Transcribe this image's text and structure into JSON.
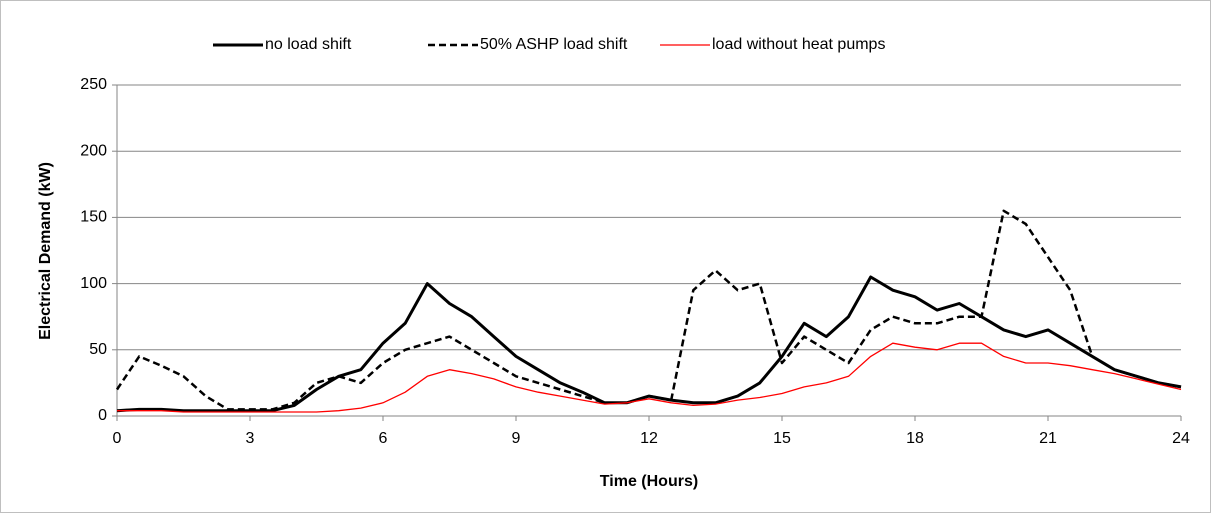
{
  "chart_data": {
    "type": "line",
    "xlabel": "Time (Hours)",
    "ylabel": "Electrical Demand (kW)",
    "x": [
      0,
      0.5,
      1,
      1.5,
      2,
      2.5,
      3,
      3.5,
      4,
      4.5,
      5,
      5.5,
      6,
      6.5,
      7,
      7.5,
      8,
      8.5,
      9,
      9.5,
      10,
      10.5,
      11,
      11.5,
      12,
      12.5,
      13,
      13.5,
      14,
      14.5,
      15,
      15.5,
      16,
      16.5,
      17,
      17.5,
      18,
      18.5,
      19,
      19.5,
      20,
      20.5,
      21,
      21.5,
      22,
      22.5,
      23,
      23.5,
      24
    ],
    "series": [
      {
        "name": "no load shift",
        "color": "#000000",
        "width": 3,
        "dashed": false,
        "values": [
          4,
          5,
          5,
          4,
          4,
          4,
          4,
          4,
          8,
          20,
          30,
          35,
          55,
          70,
          100,
          85,
          75,
          60,
          45,
          35,
          25,
          18,
          10,
          10,
          15,
          12,
          10,
          10,
          15,
          25,
          45,
          70,
          60,
          75,
          105,
          95,
          90,
          80,
          85,
          75,
          65,
          60,
          65,
          55,
          45,
          35,
          30,
          25,
          22
        ]
      },
      {
        "name": "50% ASHP load shift",
        "color": "#000000",
        "width": 2.5,
        "dashed": true,
        "values": [
          20,
          45,
          38,
          30,
          15,
          5,
          5,
          5,
          10,
          25,
          30,
          25,
          40,
          50,
          55,
          60,
          50,
          40,
          30,
          25,
          20,
          15,
          10,
          10,
          15,
          12,
          95,
          110,
          95,
          100,
          40,
          60,
          50,
          40,
          65,
          75,
          70,
          70,
          75,
          75,
          155,
          145,
          120,
          95,
          45,
          35,
          30,
          25,
          22
        ]
      },
      {
        "name": "load without heat pumps",
        "color": "#ff0000",
        "width": 1.3,
        "dashed": false,
        "values": [
          4,
          4,
          4,
          3,
          3,
          3,
          3,
          3,
          3,
          3,
          4,
          6,
          10,
          18,
          30,
          35,
          32,
          28,
          22,
          18,
          15,
          12,
          9,
          10,
          13,
          10,
          8,
          9,
          12,
          14,
          17,
          22,
          25,
          30,
          45,
          55,
          52,
          50,
          55,
          55,
          45,
          40,
          40,
          38,
          35,
          32,
          28,
          24,
          20
        ]
      }
    ],
    "xlim": [
      0,
      24
    ],
    "xticks": [
      0,
      3,
      6,
      9,
      12,
      15,
      18,
      21,
      24
    ],
    "ylim": [
      0,
      250
    ],
    "yticks": [
      0,
      50,
      100,
      150,
      200,
      250
    ],
    "grid": true,
    "legend": "top"
  }
}
